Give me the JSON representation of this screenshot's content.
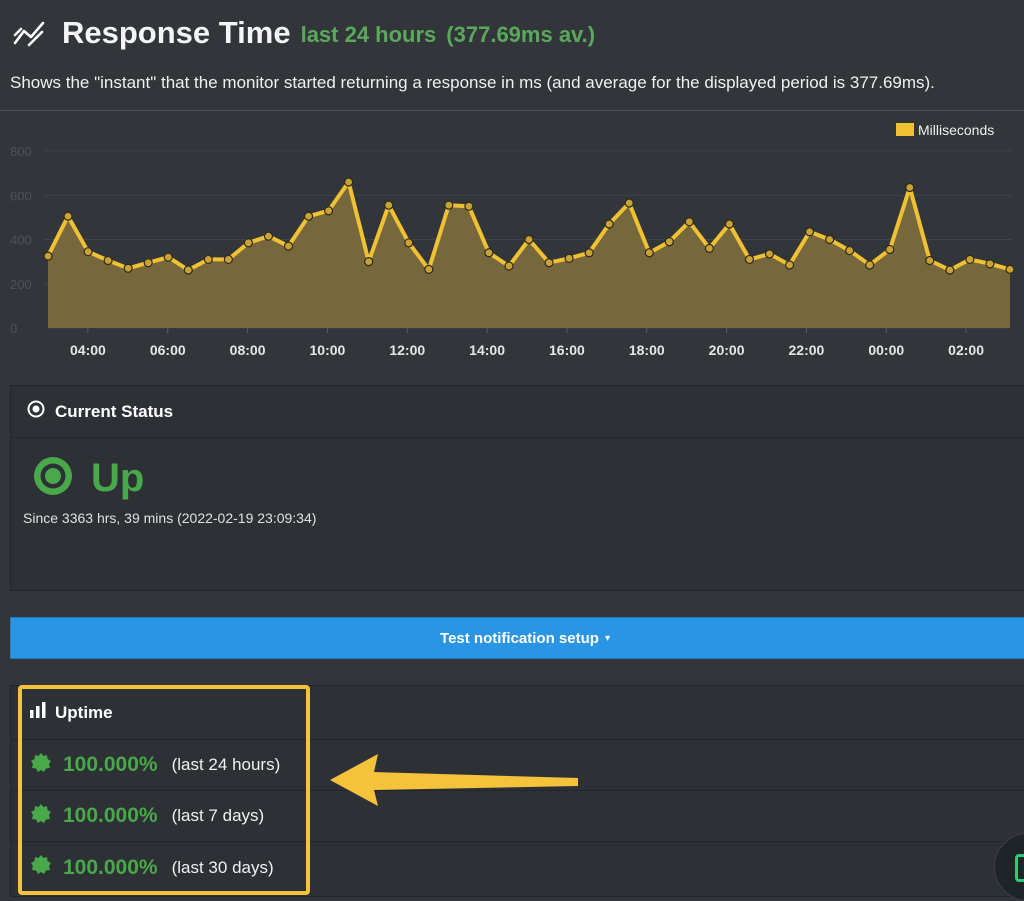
{
  "header": {
    "icon": "line-chart-icon",
    "title": "Response Time",
    "range": "last 24 hours",
    "average": "(377.69ms av.)"
  },
  "description": "Shows the \"instant\" that the monitor started returning a response in ms (and average for the displayed period is 377.69ms).",
  "chart_data": {
    "type": "area",
    "title": "",
    "xlabel": "",
    "ylabel": "",
    "ylim": [
      0,
      800
    ],
    "yticks": [
      "0",
      "200",
      "400",
      "600",
      "800"
    ],
    "xticks": [
      "04:00",
      "06:00",
      "08:00",
      "10:00",
      "12:00",
      "14:00",
      "16:00",
      "18:00",
      "20:00",
      "22:00",
      "00:00",
      "02:00"
    ],
    "x_range_hours": [
      3.0,
      27.1
    ],
    "xtick_hours": [
      4,
      6,
      8,
      10,
      12,
      14,
      16,
      18,
      20,
      22,
      24,
      26
    ],
    "grid": true,
    "legend_position": "top-right",
    "series": [
      {
        "name": "Milliseconds",
        "color": "#f0c132",
        "fill": "#7a6a3c",
        "values": [
          325,
          505,
          345,
          305,
          270,
          295,
          320,
          262,
          310,
          310,
          385,
          415,
          370,
          505,
          530,
          660,
          300,
          555,
          385,
          265,
          555,
          550,
          340,
          280,
          400,
          295,
          315,
          340,
          470,
          565,
          340,
          390,
          480,
          360,
          470,
          310,
          335,
          285,
          435,
          400,
          350,
          285,
          355,
          635,
          305,
          262,
          310,
          290,
          265
        ]
      }
    ]
  },
  "current_status": {
    "icon": "dot-circle-icon",
    "title": "Current Status",
    "status_icon": "status-dot-circle-icon",
    "status": "Up",
    "since": "Since 3363 hrs, 39 mins (2022-02-19 23:09:34)"
  },
  "notify_button": {
    "label": "Test notification setup",
    "caret": "▾"
  },
  "uptime": {
    "icon": "bar-chart-icon",
    "title": "Uptime",
    "rows": [
      {
        "icon": "badge-check-icon",
        "percent": "100.000%",
        "period": "(last 24 hours)"
      },
      {
        "icon": "badge-check-icon",
        "percent": "100.000%",
        "period": "(last 7 days)"
      },
      {
        "icon": "badge-check-icon",
        "percent": "100.000%",
        "period": "(last 30 days)"
      }
    ]
  },
  "colors": {
    "accent_green": "#49a84a",
    "highlight_yellow": "#f5c33b",
    "button_blue": "#2a94e5"
  }
}
